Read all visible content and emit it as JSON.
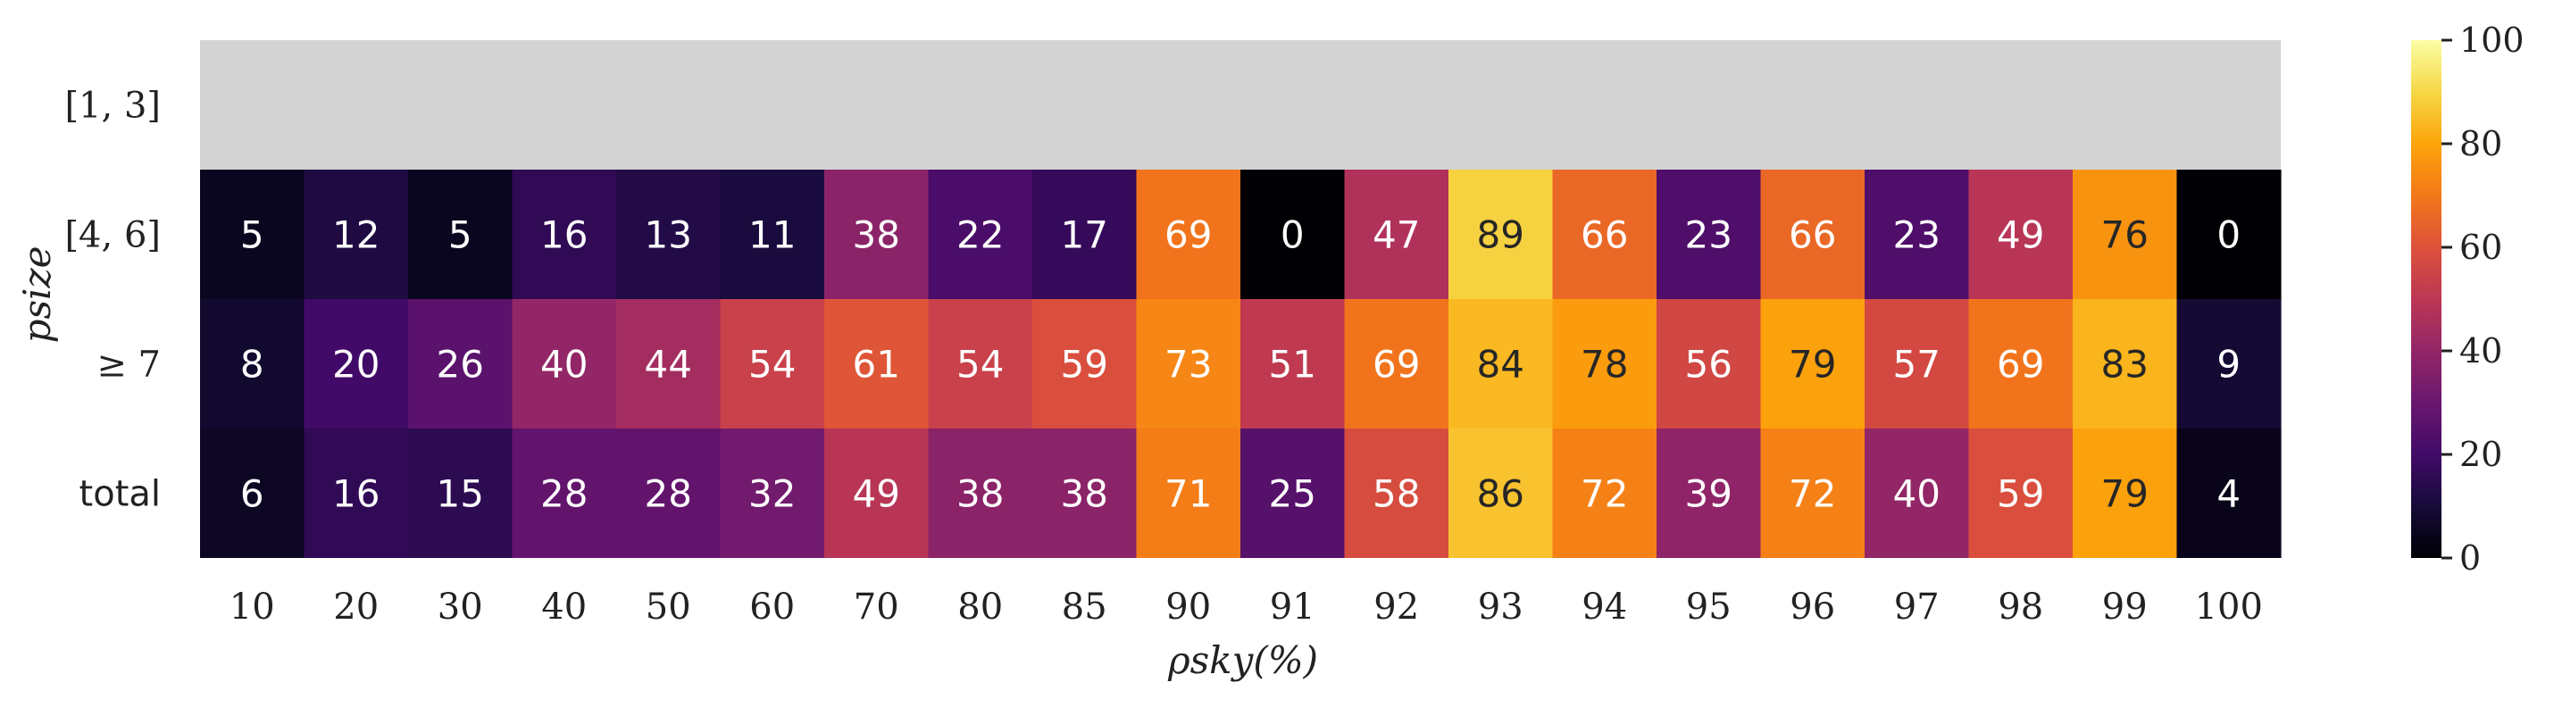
{
  "chart_data": {
    "type": "heatmap",
    "title": "",
    "xlabel": "ρsky(%)",
    "ylabel": "psize",
    "x_categories": [
      "10",
      "20",
      "30",
      "40",
      "50",
      "60",
      "70",
      "80",
      "85",
      "90",
      "91",
      "92",
      "93",
      "94",
      "95",
      "96",
      "97",
      "98",
      "99",
      "100"
    ],
    "y_categories": [
      "[1, 3]",
      "[4, 6]",
      "≥ 7",
      "total"
    ],
    "values": [
      [
        null,
        null,
        null,
        null,
        null,
        null,
        null,
        null,
        null,
        null,
        null,
        null,
        null,
        null,
        null,
        null,
        null,
        null,
        null,
        null
      ],
      [
        5,
        12,
        5,
        16,
        13,
        11,
        38,
        22,
        17,
        69,
        0,
        47,
        89,
        66,
        23,
        66,
        23,
        49,
        76,
        0
      ],
      [
        8,
        20,
        26,
        40,
        44,
        54,
        61,
        54,
        59,
        73,
        51,
        69,
        84,
        78,
        56,
        79,
        57,
        69,
        83,
        9
      ],
      [
        6,
        16,
        15,
        28,
        28,
        32,
        49,
        38,
        38,
        71,
        25,
        58,
        86,
        72,
        39,
        72,
        40,
        59,
        79,
        4
      ]
    ],
    "missing_color": "#d3d3d3",
    "colormap": "inferno",
    "vmin": 0,
    "vmax": 100,
    "colorbar_ticks": [
      "0",
      "20",
      "40",
      "60",
      "80",
      "100"
    ]
  }
}
